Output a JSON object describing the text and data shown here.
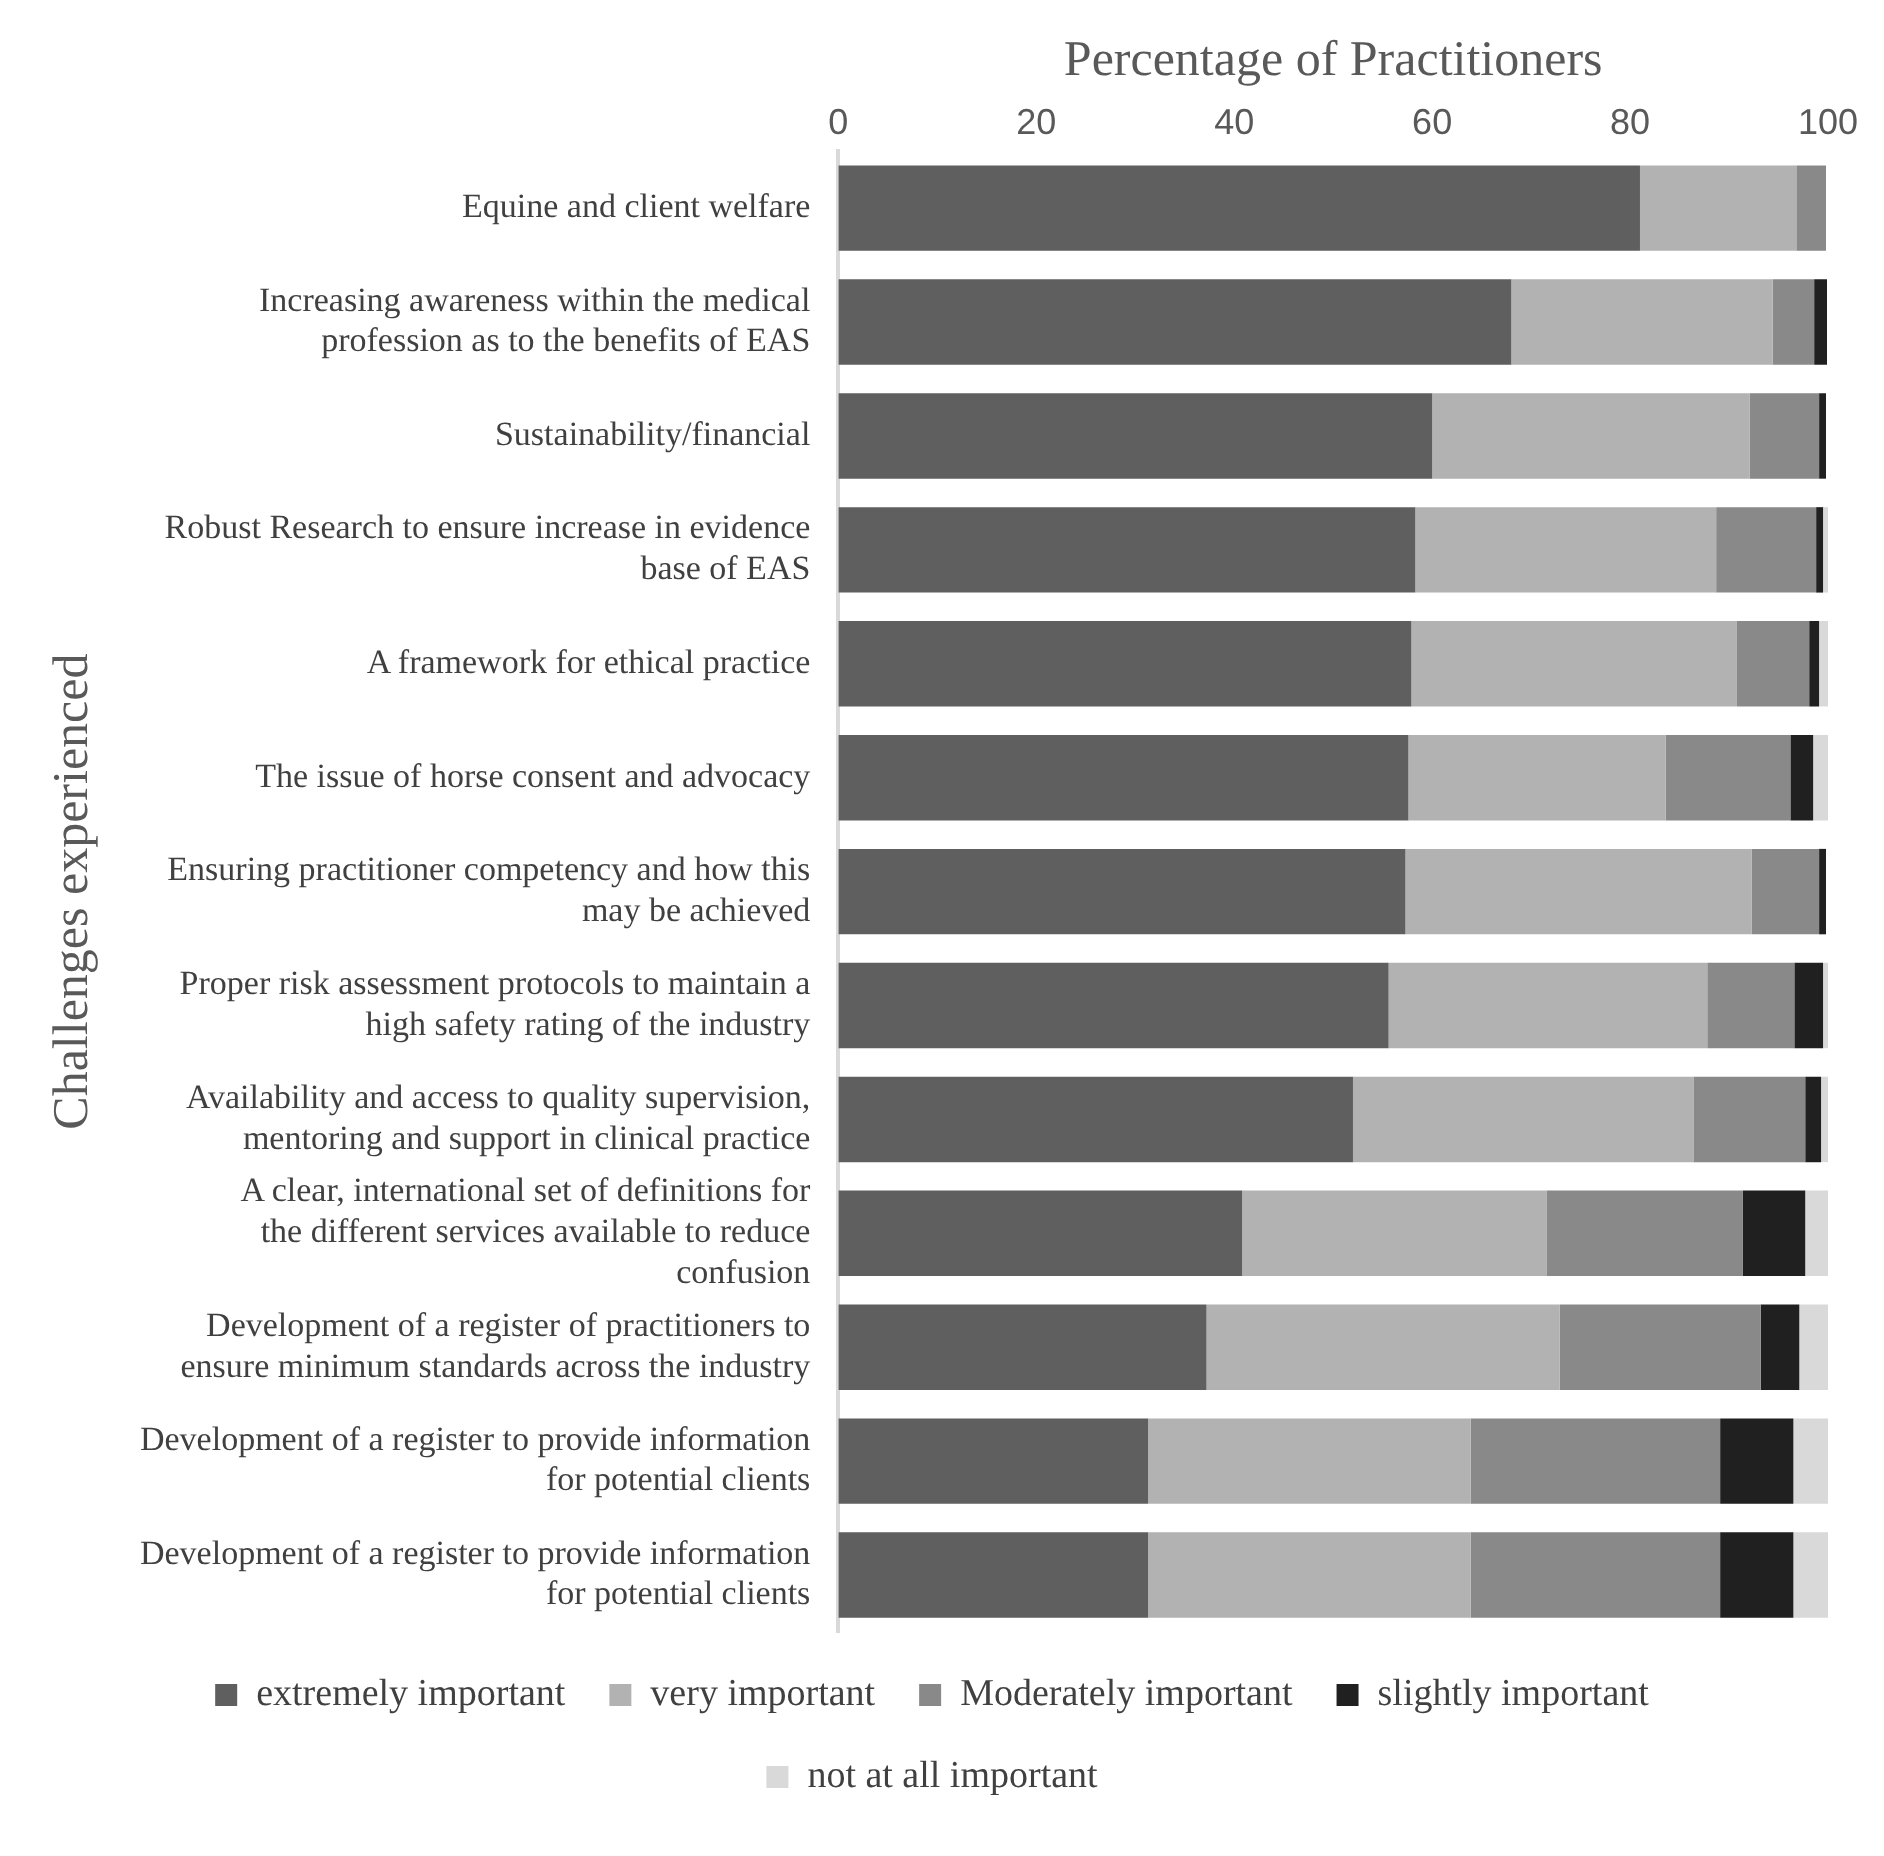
{
  "chart_data": {
    "type": "bar",
    "orientation": "horizontal",
    "stacked": true,
    "xlabel": "Percentage of Practitioners",
    "ylabel": "Challenges experienced",
    "categories": [
      "Equine and client welfare",
      "Increasing awareness within the medical profession as to the benefits of EAS",
      "Sustainability/financial",
      "Robust Research to ensure increase in evidence base of EAS",
      "A framework for ethical practice",
      "The issue of horse consent and advocacy",
      "Ensuring practitioner competency and how this may be achieved",
      "Proper risk assessment protocols to maintain a high safety rating of the industry",
      "Availability and access to quality supervision, mentoring and support in clinical practice",
      "A clear, international set of definitions for the different services available to reduce confusion",
      "Development of a register of practitioners to ensure minimum standards across the industry",
      "Development of a register to provide information for potential clients",
      "Development of a register to provide information for potential clients"
    ],
    "series": [
      {
        "name": "extremely important",
        "color": "#5f5f5f",
        "values": [
          81,
          68,
          60,
          58.3,
          57.9,
          57.6,
          57.3,
          55.6,
          52,
          40.8,
          37.2,
          31.3,
          31.3
        ]
      },
      {
        "name": "very important",
        "color": "#b2b2b2",
        "values": [
          15.8,
          26.4,
          32.1,
          30.4,
          32.9,
          26,
          35,
          32.2,
          34.4,
          30.8,
          35.7,
          32.6,
          32.6
        ]
      },
      {
        "name": "Moderately important",
        "color": "#898989",
        "values": [
          3,
          4.2,
          7,
          10.1,
          7.3,
          12.6,
          6.8,
          8.8,
          11.3,
          19.8,
          20.3,
          25.2,
          25.2
        ]
      },
      {
        "name": "slightly important",
        "color": "#202020",
        "values": [
          0,
          1.3,
          0.7,
          0.7,
          1,
          2.3,
          0.7,
          2.9,
          1.6,
          6.3,
          3.9,
          7.4,
          7.4
        ]
      },
      {
        "name": "not at all important",
        "color": "#d9d9d9",
        "values": [
          null,
          null,
          null,
          0.5,
          0.9,
          1.5,
          null,
          0.5,
          0.7,
          2.3,
          2.9,
          3.5,
          3.5
        ]
      }
    ],
    "xlim": [
      0,
      100
    ],
    "xticks": [
      0,
      20,
      40,
      60,
      80,
      100
    ],
    "grid": false,
    "legend": "bottom"
  }
}
